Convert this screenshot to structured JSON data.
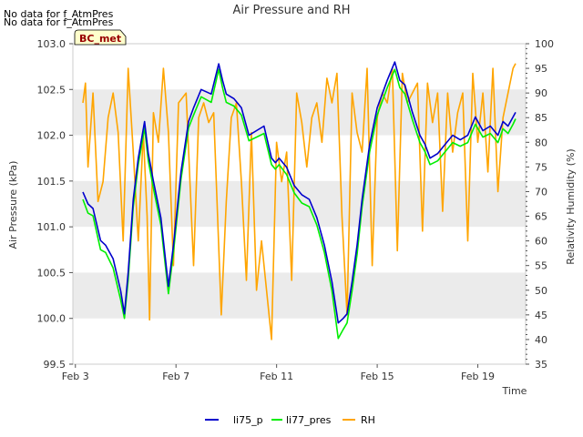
{
  "chart_data": {
    "type": "line",
    "title": "Air Pressure and RH",
    "xlabel": "Time",
    "ylabel_left": "Air Pressure (kPa)",
    "ylabel_right": "Relativity Humidity (%)",
    "notes": [
      "No data for f_AtmPres",
      "No data for f_AtmPres"
    ],
    "badge": "BC_met",
    "x_ticks": [
      "Feb 3",
      "Feb 7",
      "Feb 11",
      "Feb 15",
      "Feb 19"
    ],
    "x_tick_days": [
      3,
      7,
      11,
      15,
      19
    ],
    "xlim_days": [
      2.9,
      20.9
    ],
    "y_left_ticks": [
      "99.5",
      "100.0",
      "100.5",
      "101.0",
      "101.5",
      "102.0",
      "102.5",
      "103.0"
    ],
    "y_left_lim": [
      99.5,
      103.0
    ],
    "y_right_ticks": [
      "35",
      "40",
      "45",
      "50",
      "55",
      "60",
      "65",
      "70",
      "75",
      "80",
      "85",
      "90",
      "95",
      "100"
    ],
    "y_right_lim": [
      35,
      100
    ],
    "grid": "horizontal-bands",
    "legend_position": "bottom-center",
    "colors": {
      "li75_p": "#0000cc",
      "li77_pres": "#00ee00",
      "RH": "#ffa500",
      "band": "#ebebeb"
    },
    "series": [
      {
        "name": "li75_p",
        "axis": "left",
        "x": [
          3.3,
          3.5,
          3.7,
          4.0,
          4.2,
          4.5,
          4.8,
          4.95,
          5.1,
          5.3,
          5.5,
          5.75,
          5.9,
          6.1,
          6.4,
          6.7,
          6.9,
          7.2,
          7.5,
          7.7,
          8.0,
          8.4,
          8.7,
          8.85,
          9.0,
          9.3,
          9.6,
          9.9,
          10.2,
          10.5,
          10.8,
          10.95,
          11.1,
          11.4,
          11.7,
          12.0,
          12.3,
          12.6,
          12.9,
          13.2,
          13.45,
          13.65,
          13.8,
          14.0,
          14.2,
          14.4,
          14.7,
          15.0,
          15.4,
          15.7,
          15.9,
          16.1,
          16.4,
          16.7,
          16.9,
          17.1,
          17.4,
          17.7,
          18.0,
          18.3,
          18.6,
          18.9,
          19.2,
          19.5,
          19.8,
          20.0,
          20.2,
          20.4,
          20.5
        ],
        "values": [
          101.38,
          101.25,
          101.2,
          100.85,
          100.8,
          100.65,
          100.3,
          100.05,
          100.5,
          101.3,
          101.75,
          102.15,
          101.8,
          101.5,
          101.1,
          100.35,
          100.8,
          101.6,
          102.15,
          102.3,
          102.5,
          102.45,
          102.78,
          102.6,
          102.45,
          102.4,
          102.3,
          102.0,
          102.05,
          102.1,
          101.75,
          101.7,
          101.75,
          101.65,
          101.45,
          101.35,
          101.3,
          101.1,
          100.8,
          100.4,
          99.95,
          100.0,
          100.05,
          100.4,
          100.8,
          101.3,
          101.9,
          102.3,
          102.6,
          102.8,
          102.6,
          102.55,
          102.25,
          102.0,
          101.9,
          101.75,
          101.8,
          101.9,
          102.0,
          101.95,
          102.0,
          102.2,
          102.05,
          102.1,
          102.0,
          102.15,
          102.1,
          102.2,
          102.25
        ]
      },
      {
        "name": "li77_pres",
        "axis": "left",
        "x": [
          3.3,
          3.5,
          3.7,
          4.0,
          4.2,
          4.5,
          4.8,
          4.95,
          5.1,
          5.3,
          5.5,
          5.75,
          5.9,
          6.1,
          6.4,
          6.7,
          6.9,
          7.2,
          7.5,
          7.7,
          8.0,
          8.4,
          8.7,
          8.85,
          9.0,
          9.3,
          9.6,
          9.9,
          10.2,
          10.5,
          10.8,
          10.95,
          11.1,
          11.4,
          11.7,
          12.0,
          12.3,
          12.6,
          12.9,
          13.2,
          13.45,
          13.65,
          13.8,
          14.0,
          14.2,
          14.4,
          14.7,
          15.0,
          15.4,
          15.7,
          15.9,
          16.1,
          16.4,
          16.7,
          16.9,
          17.1,
          17.4,
          17.7,
          18.0,
          18.3,
          18.6,
          18.9,
          19.2,
          19.5,
          19.8,
          20.0,
          20.2,
          20.4,
          20.5
        ],
        "values": [
          101.3,
          101.15,
          101.12,
          100.75,
          100.72,
          100.55,
          100.2,
          100.0,
          100.42,
          101.22,
          101.68,
          102.08,
          101.72,
          101.42,
          101.02,
          100.27,
          100.72,
          101.52,
          102.08,
          102.22,
          102.42,
          102.36,
          102.72,
          102.52,
          102.36,
          102.32,
          102.22,
          101.94,
          101.98,
          102.02,
          101.68,
          101.63,
          101.68,
          101.57,
          101.37,
          101.26,
          101.22,
          101.02,
          100.72,
          100.3,
          99.78,
          99.88,
          99.95,
          100.3,
          100.7,
          101.22,
          101.82,
          102.22,
          102.52,
          102.72,
          102.52,
          102.45,
          102.17,
          101.92,
          101.82,
          101.68,
          101.72,
          101.82,
          101.92,
          101.88,
          101.92,
          102.12,
          101.98,
          102.02,
          101.92,
          102.07,
          102.02,
          102.12,
          102.18
        ]
      },
      {
        "name": "RH",
        "axis": "right",
        "x": [
          3.3,
          3.4,
          3.5,
          3.7,
          3.9,
          4.1,
          4.3,
          4.5,
          4.7,
          4.9,
          5.1,
          5.3,
          5.5,
          5.7,
          5.85,
          5.95,
          6.1,
          6.3,
          6.5,
          6.7,
          6.9,
          7.1,
          7.4,
          7.7,
          7.9,
          8.1,
          8.3,
          8.5,
          8.8,
          9.0,
          9.2,
          9.4,
          9.6,
          9.8,
          10.0,
          10.2,
          10.4,
          10.6,
          10.8,
          11.0,
          11.2,
          11.4,
          11.6,
          11.8,
          12.0,
          12.2,
          12.4,
          12.6,
          12.8,
          13.0,
          13.2,
          13.4,
          13.6,
          13.8,
          14.0,
          14.2,
          14.4,
          14.6,
          14.8,
          15.0,
          15.2,
          15.4,
          15.6,
          15.8,
          16.0,
          16.2,
          16.4,
          16.6,
          16.8,
          17.0,
          17.2,
          17.4,
          17.6,
          17.8,
          18.0,
          18.2,
          18.4,
          18.6,
          18.8,
          19.0,
          19.2,
          19.4,
          19.6,
          19.8,
          20.0,
          20.2,
          20.4,
          20.5
        ],
        "values": [
          88,
          92,
          75,
          90,
          68,
          72,
          85,
          90,
          82,
          60,
          95,
          78,
          60,
          82,
          65,
          44,
          86,
          80,
          95,
          82,
          55,
          88,
          90,
          55,
          85,
          88,
          84,
          86,
          45,
          68,
          85,
          88,
          72,
          52,
          82,
          50,
          60,
          50,
          40,
          80,
          72,
          78,
          52,
          90,
          84,
          75,
          85,
          88,
          80,
          93,
          88,
          94,
          65,
          45,
          90,
          82,
          78,
          95,
          55,
          85,
          90,
          88,
          95,
          58,
          94,
          88,
          90,
          92,
          62,
          92,
          84,
          90,
          66,
          90,
          78,
          86,
          90,
          60,
          94,
          80,
          90,
          74,
          95,
          70,
          85,
          90,
          95,
          96
        ]
      }
    ]
  }
}
